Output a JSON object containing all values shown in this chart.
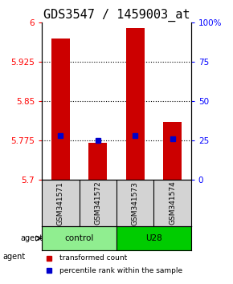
{
  "title": "GDS3547 / 1459003_at",
  "samples": [
    "GSM341571",
    "GSM341572",
    "GSM341573",
    "GSM341574"
  ],
  "bar_values": [
    5.97,
    5.77,
    5.99,
    5.81
  ],
  "percentile_values": [
    28,
    25,
    28,
    26
  ],
  "bar_bottom": 5.7,
  "ylim_left": [
    5.7,
    6.0
  ],
  "ylim_right": [
    0,
    100
  ],
  "yticks_left": [
    5.7,
    5.775,
    5.85,
    5.925,
    6.0
  ],
  "ytick_labels_left": [
    "5.7",
    "5.775",
    "5.85",
    "5.925",
    "6"
  ],
  "yticks_right": [
    0,
    25,
    50,
    75,
    100
  ],
  "ytick_labels_right": [
    "0",
    "25",
    "50",
    "75",
    "100%"
  ],
  "groups": [
    {
      "label": "control",
      "samples": [
        0,
        1
      ],
      "color": "#90ee90"
    },
    {
      "label": "U28",
      "samples": [
        2,
        3
      ],
      "color": "#00cc00"
    }
  ],
  "bar_color": "#cc0000",
  "dot_color": "#0000cc",
  "bar_width": 0.5,
  "background_color": "#ffffff",
  "plot_bg_color": "#ffffff",
  "sample_bg_color": "#d3d3d3",
  "grid_color": "#000000",
  "legend_red_label": "transformed count",
  "legend_blue_label": "percentile rank within the sample",
  "agent_label": "agent",
  "title_fontsize": 11,
  "axis_fontsize": 8,
  "tick_fontsize": 7.5
}
